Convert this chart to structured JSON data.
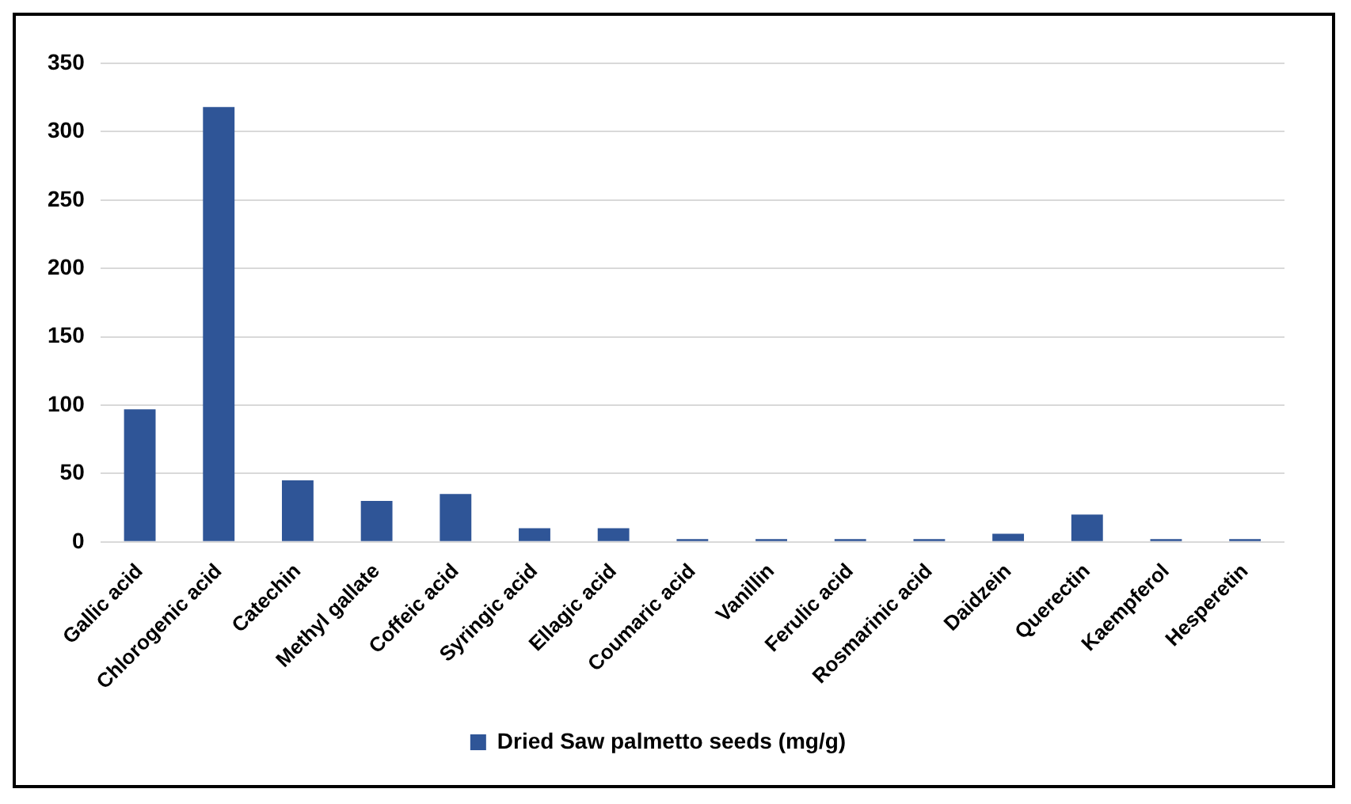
{
  "chart_data": {
    "type": "bar",
    "categories": [
      "Gallic acid",
      "Chlorogenic acid",
      "Catechin",
      "Methyl gallate",
      "Coffeic acid",
      "Syringic acid",
      "Ellagic acid",
      "Coumaric acid",
      "Vanillin",
      "Ferulic acid",
      "Rosmarinic acid",
      "Daidzein",
      "Querectin",
      "Kaempferol",
      "Hesperetin"
    ],
    "series": [
      {
        "name": "Dried Saw palmetto seeds (mg/g)",
        "color": "#2f5597",
        "values": [
          97,
          318,
          45,
          30,
          35,
          10,
          10,
          2,
          2,
          2,
          2,
          6,
          20,
          2,
          2
        ]
      }
    ],
    "ylim": [
      0,
      350
    ],
    "yticks": [
      0,
      50,
      100,
      150,
      200,
      250,
      300,
      350
    ],
    "grid": "y",
    "legend": "bottom"
  }
}
